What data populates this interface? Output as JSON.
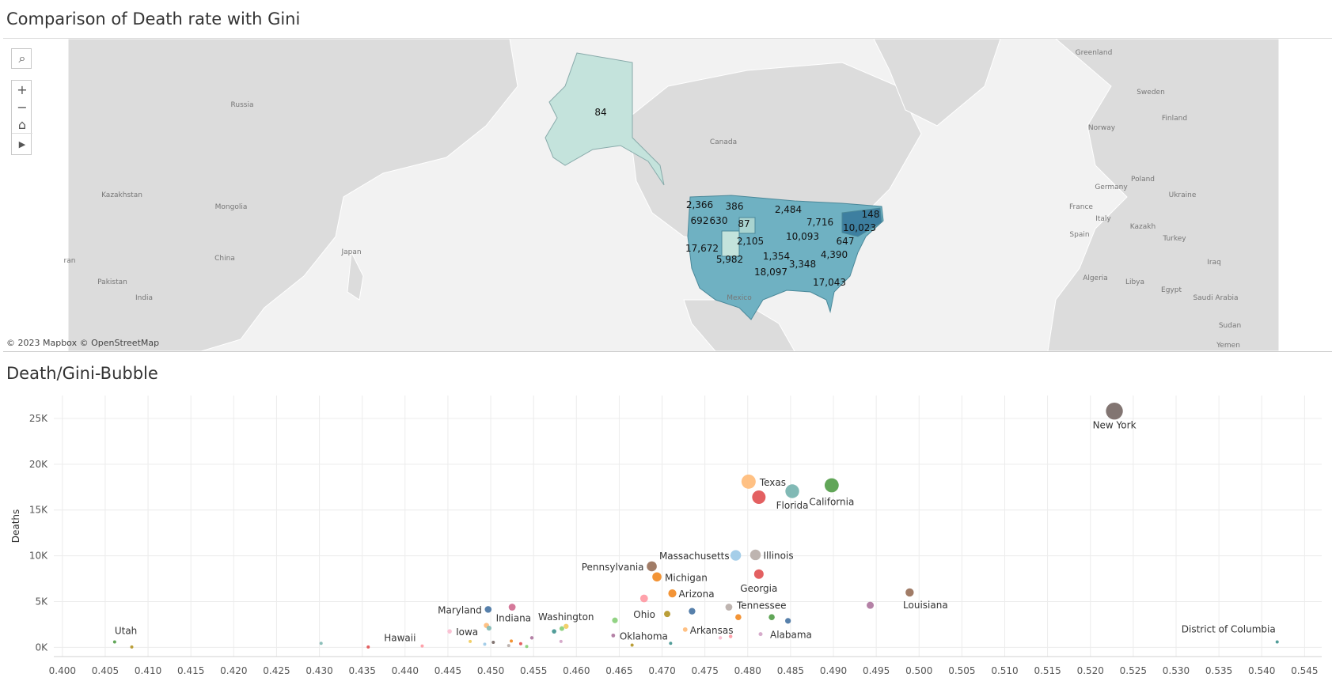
{
  "map": {
    "title": "Comparison of Death rate with Gini",
    "attribution": "© 2023 Mapbox  © OpenStreetMap",
    "controls": {
      "search": "⌕",
      "zoom_in": "+",
      "zoom_out": "−",
      "home": "⌂",
      "play": "▶"
    },
    "country_labels": [
      {
        "text": "Greenland"
      },
      {
        "text": "Russia"
      },
      {
        "text": "Canada"
      },
      {
        "text": "Kazakhstan"
      },
      {
        "text": "Mongolia"
      },
      {
        "text": "China"
      },
      {
        "text": "Japan"
      },
      {
        "text": "Pakistan"
      },
      {
        "text": "India"
      },
      {
        "text": "ran"
      },
      {
        "text": "Mexico"
      },
      {
        "text": "Sweden"
      },
      {
        "text": "Finland"
      },
      {
        "text": "Norway"
      },
      {
        "text": "Germany"
      },
      {
        "text": "Poland"
      },
      {
        "text": "Ukraine"
      },
      {
        "text": "France"
      },
      {
        "text": "Italy"
      },
      {
        "text": "Kazakh"
      },
      {
        "text": "Spain"
      },
      {
        "text": "Turkey"
      },
      {
        "text": "Iraq"
      },
      {
        "text": "Algeria"
      },
      {
        "text": "Libya"
      },
      {
        "text": "Egypt"
      },
      {
        "text": "Saudi Arabia"
      },
      {
        "text": "Sudan"
      },
      {
        "text": "Yemen"
      }
    ],
    "state_values": [
      "84",
      "2,366",
      "386",
      "2,484",
      "148",
      "692",
      "630",
      "87",
      "7,716",
      "10,023",
      "2,105",
      "10,093",
      "647",
      "17,672",
      "1,354",
      "4,390",
      "5,982",
      "3,348",
      "18,097",
      "17,043"
    ]
  },
  "chart_data": {
    "type": "scatter",
    "title": "Death/Gini-Bubble",
    "xlabel": "",
    "ylabel": "Deaths",
    "xlim": [
      0.399,
      0.547
    ],
    "ylim": [
      -1000,
      27500
    ],
    "xticks": [
      "0.400",
      "0.405",
      "0.410",
      "0.415",
      "0.420",
      "0.425",
      "0.430",
      "0.435",
      "0.440",
      "0.445",
      "0.450",
      "0.455",
      "0.460",
      "0.465",
      "0.470",
      "0.475",
      "0.480",
      "0.485",
      "0.490",
      "0.495",
      "0.500",
      "0.505",
      "0.510",
      "0.515",
      "0.520",
      "0.525",
      "0.530",
      "0.535",
      "0.540",
      "0.545"
    ],
    "yticks": [
      "0K",
      "5K",
      "10K",
      "15K",
      "20K",
      "25K"
    ],
    "grid": true,
    "points": [
      {
        "x": 0.5228,
        "y": 25800,
        "label": "New York",
        "color": "#7b6e6a"
      },
      {
        "x": 0.4898,
        "y": 17700,
        "label": "California",
        "color": "#59a14f"
      },
      {
        "x": 0.4801,
        "y": 18100,
        "label": "Texas",
        "color": "#ffbe7d"
      },
      {
        "x": 0.4852,
        "y": 17050,
        "label": "Florida",
        "color": "#7ab5b1"
      },
      {
        "x": 0.4813,
        "y": 16400,
        "label": "",
        "color": "#e15759"
      },
      {
        "x": 0.4809,
        "y": 10100,
        "label": "Illinois",
        "color": "#bab0ac"
      },
      {
        "x": 0.4786,
        "y": 10050,
        "label": "Massachusetts",
        "color": "#a0cbe8"
      },
      {
        "x": 0.4688,
        "y": 8850,
        "label": "Pennsylvania",
        "color": "#9c755f"
      },
      {
        "x": 0.4813,
        "y": 8000,
        "label": "Georgia",
        "color": "#e15759"
      },
      {
        "x": 0.4694,
        "y": 7700,
        "label": "Michigan",
        "color": "#f28e2b"
      },
      {
        "x": 0.4712,
        "y": 5900,
        "label": "Arizona",
        "color": "#f28e2b"
      },
      {
        "x": 0.4989,
        "y": 6000,
        "label": "Louisiana",
        "color": "#9c755f"
      },
      {
        "x": 0.4679,
        "y": 5350,
        "label": "",
        "color": "#ff9da7"
      },
      {
        "x": 0.4943,
        "y": 4600,
        "label": "",
        "color": "#b07aa1"
      },
      {
        "x": 0.4778,
        "y": 4400,
        "label": "Tennessee",
        "color": "#bab0ac"
      },
      {
        "x": 0.4497,
        "y": 4150,
        "label": "Maryland",
        "color": "#4e79a7"
      },
      {
        "x": 0.4525,
        "y": 4400,
        "label": "",
        "color": "#d37295"
      },
      {
        "x": 0.4735,
        "y": 3950,
        "label": "",
        "color": "#4e79a7"
      },
      {
        "x": 0.4706,
        "y": 3650,
        "label": "Ohio",
        "color": "#b6992d"
      },
      {
        "x": 0.4789,
        "y": 3300,
        "label": "",
        "color": "#f28e2b"
      },
      {
        "x": 0.4828,
        "y": 3300,
        "label": "",
        "color": "#59a14f"
      },
      {
        "x": 0.4847,
        "y": 2900,
        "label": "",
        "color": "#4e79a7"
      },
      {
        "x": 0.4645,
        "y": 2950,
        "label": "",
        "color": "#8cd17d"
      },
      {
        "x": 0.4588,
        "y": 2300,
        "label": "Washington",
        "color": "#f1ce63"
      },
      {
        "x": 0.4583,
        "y": 2050,
        "label": "",
        "color": "#8cd17d"
      },
      {
        "x": 0.4495,
        "y": 2400,
        "label": "Indiana",
        "color": "#ffbe7d"
      },
      {
        "x": 0.4498,
        "y": 2100,
        "label": "",
        "color": "#86bcb6"
      },
      {
        "x": 0.4574,
        "y": 1750,
        "label": "",
        "color": "#499894"
      },
      {
        "x": 0.4452,
        "y": 1750,
        "label": "Iowa",
        "color": "#fabfd2"
      },
      {
        "x": 0.4727,
        "y": 1950,
        "label": "Arkansas",
        "color": "#ffbe7d"
      },
      {
        "x": 0.4815,
        "y": 1450,
        "label": "Alabama",
        "color": "#d4a6c8"
      },
      {
        "x": 0.4643,
        "y": 1300,
        "label": "Oklahoma",
        "color": "#b07aa1"
      },
      {
        "x": 0.4548,
        "y": 1050,
        "label": "",
        "color": "#b07aa1"
      },
      {
        "x": 0.4582,
        "y": 650,
        "label": "",
        "color": "#d4a6c8"
      },
      {
        "x": 0.4768,
        "y": 1050,
        "label": "",
        "color": "#fabfd2"
      },
      {
        "x": 0.478,
        "y": 1200,
        "label": "",
        "color": "#ff9da7"
      },
      {
        "x": 0.4061,
        "y": 600,
        "label": "Utah",
        "color": "#59a14f"
      },
      {
        "x": 0.4081,
        "y": 50,
        "label": "",
        "color": "#b6992d"
      },
      {
        "x": 0.4302,
        "y": 450,
        "label": "",
        "color": "#86bcb6"
      },
      {
        "x": 0.4357,
        "y": 50,
        "label": "",
        "color": "#e15759"
      },
      {
        "x": 0.442,
        "y": 150,
        "label": "Hawaii",
        "color": "#ff9da7"
      },
      {
        "x": 0.4476,
        "y": 650,
        "label": "",
        "color": "#f1ce63"
      },
      {
        "x": 0.4493,
        "y": 350,
        "label": "",
        "color": "#a0cbe8"
      },
      {
        "x": 0.4503,
        "y": 550,
        "label": "",
        "color": "#7b6e6a"
      },
      {
        "x": 0.4521,
        "y": 200,
        "label": "",
        "color": "#bab0ac"
      },
      {
        "x": 0.4524,
        "y": 700,
        "label": "",
        "color": "#f28e2b"
      },
      {
        "x": 0.4535,
        "y": 400,
        "label": "",
        "color": "#e15759"
      },
      {
        "x": 0.4542,
        "y": 100,
        "label": "",
        "color": "#8cd17d"
      },
      {
        "x": 0.4665,
        "y": 250,
        "label": "",
        "color": "#b6992d"
      },
      {
        "x": 0.471,
        "y": 450,
        "label": "",
        "color": "#499894"
      },
      {
        "x": 0.5418,
        "y": 600,
        "label": "District of Columbia",
        "color": "#499894"
      }
    ]
  }
}
